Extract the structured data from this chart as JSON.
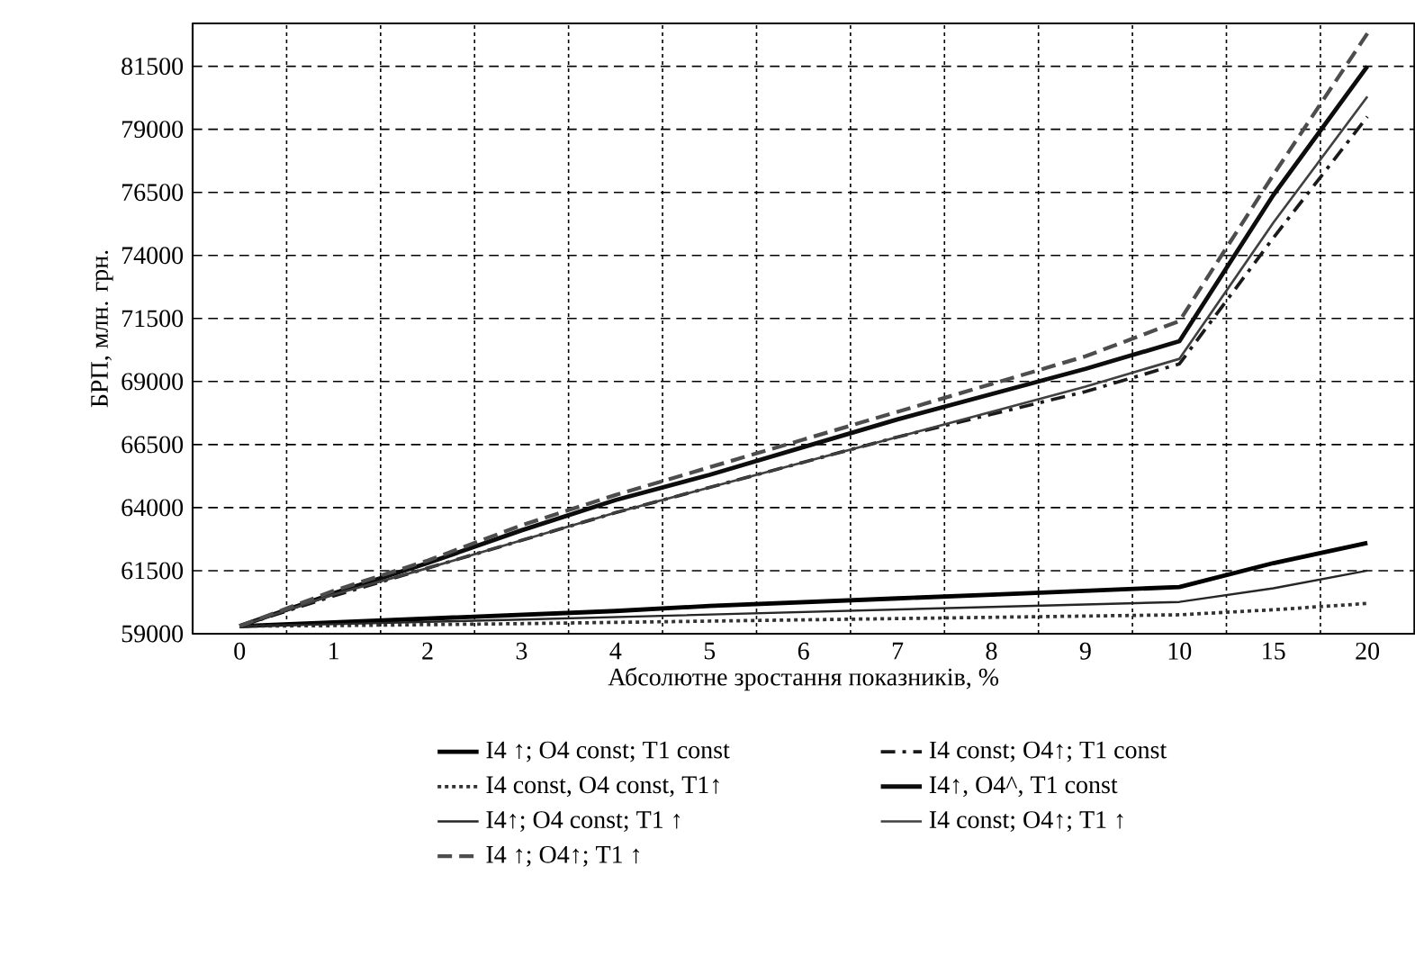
{
  "chart_data": {
    "type": "line",
    "xlabel": "Абсолютне зростання показників, %",
    "ylabel": "БРП, млн. грн.",
    "categories": [
      "0",
      "1",
      "2",
      "3",
      "4",
      "5",
      "6",
      "7",
      "8",
      "9",
      "10",
      "15",
      "20"
    ],
    "ylim": [
      59000,
      83200
    ],
    "yticks": [
      59000,
      61500,
      64000,
      66500,
      69000,
      71500,
      74000,
      76500,
      79000,
      81500
    ],
    "grid": true,
    "legend": "bottom",
    "series": [
      {
        "name": "I4 ↑; O4 const; T1 const",
        "color": "#000000",
        "line_style": "solid",
        "values": [
          59300,
          59450,
          59600,
          59750,
          59900,
          60100,
          60250,
          60400,
          60550,
          60700,
          60850,
          61800,
          62600
        ]
      },
      {
        "name": "I4 const; O4↑;  T1 const",
        "color": "#1a1a1a",
        "line_style": "dashdot",
        "values": [
          59300,
          60500,
          61600,
          62700,
          63800,
          64800,
          65800,
          66800,
          67700,
          68600,
          69700,
          74700,
          79500
        ]
      },
      {
        "name": "I4 const, O4 const,  T1↑",
        "color": "#333333",
        "line_style": "dotted",
        "values": [
          59300,
          59320,
          59360,
          59400,
          59450,
          59500,
          59550,
          59600,
          59650,
          59700,
          59750,
          59950,
          60200
        ]
      },
      {
        "name": "I4↑, O4^,  T1 const",
        "color": "#0d0d0d",
        "line_style": "solid",
        "values": [
          59300,
          60600,
          61800,
          63100,
          64300,
          65300,
          66400,
          67500,
          68500,
          69500,
          70600,
          76400,
          81500
        ]
      },
      {
        "name": "I4↑; O4 const;  T1 ↑",
        "color": "#262626",
        "line_style": "solid",
        "values": [
          59300,
          59380,
          59470,
          59560,
          59660,
          59760,
          59860,
          59960,
          60060,
          60160,
          60260,
          60800,
          61500
        ]
      },
      {
        "name": "I4 const; O4↑;  T1 ↑",
        "color": "#404040",
        "line_style": "solid",
        "values": [
          59300,
          60550,
          61600,
          62700,
          63800,
          64800,
          65800,
          66800,
          67800,
          68800,
          69900,
          75300,
          80300
        ]
      },
      {
        "name": "I4 ↑; O4↑;  T1 ↑",
        "color": "#4d4d4d",
        "line_style": "dashed",
        "values": [
          59300,
          60700,
          61900,
          63300,
          64500,
          65600,
          66700,
          67800,
          68900,
          70000,
          71400,
          77200,
          82800
        ]
      }
    ]
  }
}
